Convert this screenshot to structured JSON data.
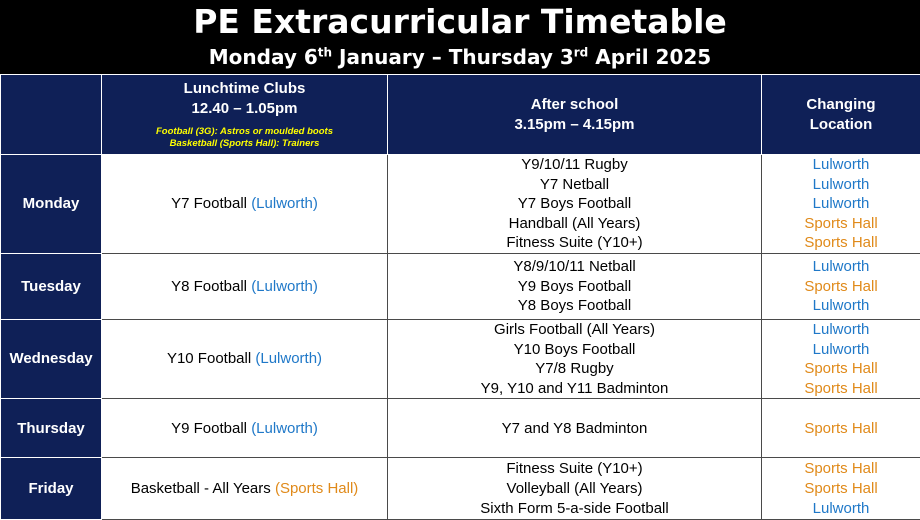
{
  "header": {
    "title": "PE Extracurricular Timetable",
    "subtitle_pre": "Monday 6",
    "subtitle_sup1": "th",
    "subtitle_mid": " January – Thursday 3",
    "subtitle_sup2": "rd",
    "subtitle_post": " April 2025"
  },
  "columns": {
    "lunch_title": "Lunchtime Clubs",
    "lunch_time": "12.40 – 1.05pm",
    "lunch_note1": "Football (3G): Astros or moulded boots",
    "lunch_note2": "Basketball (Sports Hall): Trainers",
    "after_title": "After school",
    "after_time": "3.15pm – 4.15pm",
    "changing_title": "Changing",
    "changing_title2": "Location"
  },
  "days": [
    {
      "day": "Monday",
      "lunch": "Y7 Football",
      "lunch_loc": "(Lulworth)",
      "after": [
        "Y9/10/11 Rugby",
        "Y7 Netball",
        "Y7 Boys Football",
        "Handball (All Years)",
        "Fitness Suite (Y10+)"
      ],
      "locations": [
        "Lulworth",
        "Lulworth",
        "Lulworth",
        "Sports Hall",
        "Sports Hall"
      ]
    },
    {
      "day": "Tuesday",
      "lunch": "Y8 Football",
      "lunch_loc": "(Lulworth)",
      "after": [
        "Y8/9/10/11 Netball",
        "Y9 Boys Football",
        "Y8 Boys Football"
      ],
      "locations": [
        "Lulworth",
        "Sports Hall",
        "Lulworth"
      ]
    },
    {
      "day": "Wednesday",
      "lunch": "Y10 Football",
      "lunch_loc": "(Lulworth)",
      "after": [
        "Girls Football (All Years)",
        "Y10 Boys Football",
        "Y7/8 Rugby",
        "Y9, Y10 and Y11 Badminton"
      ],
      "locations": [
        "Lulworth",
        "Lulworth",
        "Sports Hall",
        "Sports Hall"
      ]
    },
    {
      "day": "Thursday",
      "lunch": "Y9 Football",
      "lunch_loc": "(Lulworth)",
      "after": [
        "Y7 and Y8 Badminton"
      ],
      "locations": [
        "Sports Hall"
      ]
    },
    {
      "day": "Friday",
      "lunch": "Basketball - All Years",
      "lunch_loc": "(Sports Hall)",
      "after": [
        "Fitness Suite (Y10+)",
        "Volleyball (All Years)",
        "Sixth Form 5-a-side Football"
      ],
      "locations": [
        "Sports Hall",
        "Sports Hall",
        "Lulworth"
      ]
    }
  ],
  "colors": {
    "header_bg": "#000000",
    "navy": "#0f2057",
    "lulworth": "#1f78c8",
    "sports_hall": "#e08a1a",
    "note_yellow": "#ffff00"
  }
}
